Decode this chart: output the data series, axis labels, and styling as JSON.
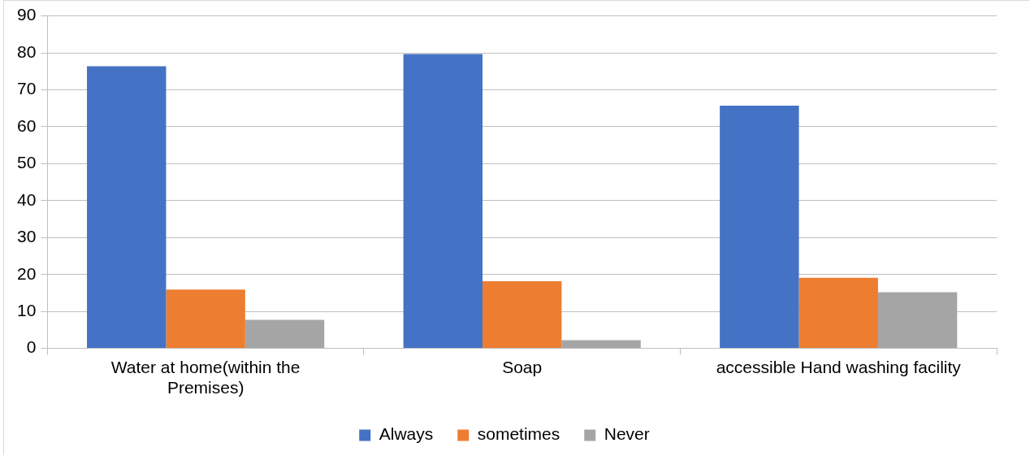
{
  "chart_data": {
    "type": "bar",
    "categories": [
      "Water at home(within the Premises)",
      "Soap",
      "accessible Hand washing facility"
    ],
    "series": [
      {
        "name": "Always",
        "color": "#4472c4",
        "values": [
          76.4,
          79.7,
          65.7
        ]
      },
      {
        "name": "sometimes",
        "color": "#ed7d31",
        "values": [
          15.9,
          18.2,
          19.1
        ]
      },
      {
        "name": "Never",
        "color": "#a5a5a5",
        "values": [
          7.7,
          2.2,
          15.2
        ]
      }
    ],
    "ylim": [
      0,
      90
    ],
    "yticks": [
      0,
      10,
      20,
      30,
      40,
      50,
      60,
      70,
      80,
      90
    ],
    "grid": "y",
    "legend": "bottom"
  }
}
